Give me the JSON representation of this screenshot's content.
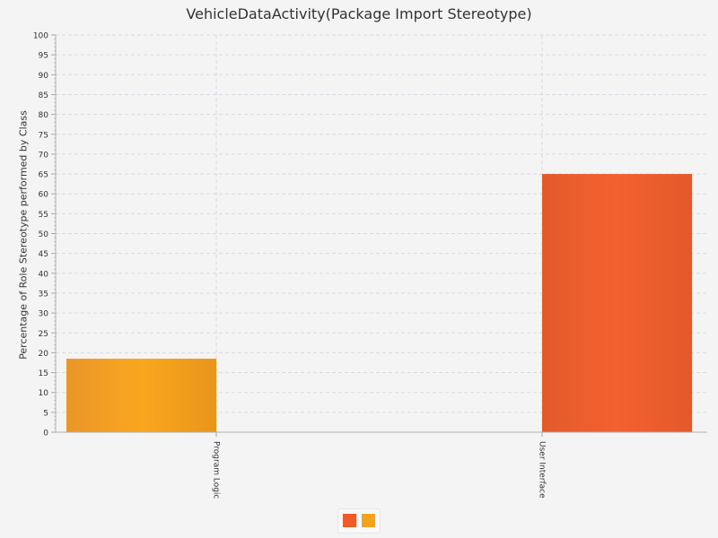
{
  "chart_data": {
    "type": "bar",
    "title": "VehicleDataActivity(Package Import Stereotype)",
    "ylabel": "Percentage of Role Stereotype performed by Class",
    "xlabel": "",
    "ylim": [
      0,
      100
    ],
    "ytick_step": 5,
    "grid": true,
    "categories": [
      "Program Logic",
      "User Interface"
    ],
    "series": [
      {
        "color": "#f05a28",
        "values": [
          0,
          65
        ]
      },
      {
        "color": "#f7a21b",
        "values": [
          18.5,
          0
        ]
      }
    ],
    "bars": [
      {
        "category": "Program Logic",
        "value": 18.5,
        "color": "#f7a21b"
      },
      {
        "category": "User Interface",
        "value": 65,
        "color": "#f05a28"
      }
    ],
    "legend_placement": "bottom-center"
  }
}
